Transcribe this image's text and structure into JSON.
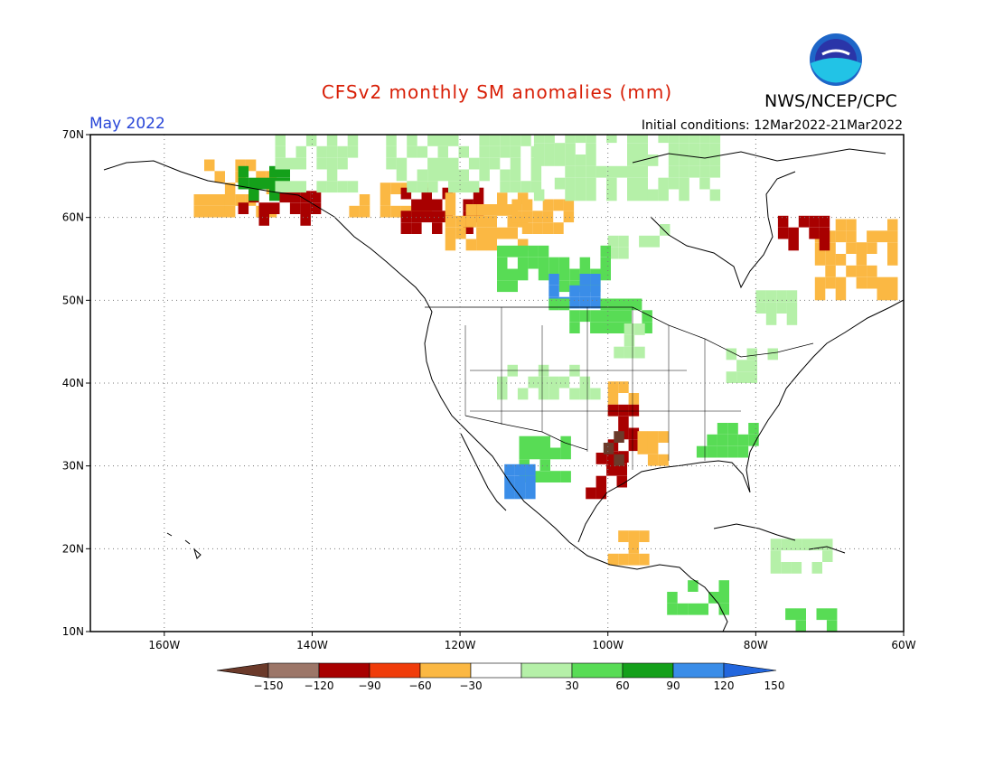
{
  "title": "CFSv2 monthly SM anomalies (mm)",
  "agency": "NWS/NCEP/CPC",
  "valid_month": "May 2022",
  "initial_conditions": "Initial conditions: 12Mar2022-21Mar2022",
  "logo_text": "NOAA",
  "colors": {
    "title": "#d81e06",
    "valid_month": "#2846d8"
  },
  "map": {
    "lon_range": [
      -170,
      -60
    ],
    "lat_range": [
      10,
      70
    ],
    "lon_ticks": [
      -160,
      -140,
      -120,
      -100,
      -80,
      -60
    ],
    "lat_ticks": [
      10,
      20,
      30,
      40,
      50,
      60,
      70
    ],
    "lon_labels": [
      "160W",
      "140W",
      "120W",
      "100W",
      "80W",
      "60W"
    ],
    "lat_labels": [
      "10N",
      "20N",
      "30N",
      "40N",
      "50N",
      "60N",
      "70N"
    ],
    "gridlines": "dotted"
  },
  "legend": {
    "labels": [
      "−150",
      "−120",
      "−90",
      "−60",
      "−30",
      "30",
      "60",
      "90",
      "120",
      "150"
    ],
    "colors": [
      "#6b3a2a",
      "#9c7668",
      "#a80000",
      "#f03c0a",
      "#fbb843",
      "#ffffff",
      "#b5f0a8",
      "#58dc55",
      "#14a01a",
      "#3a8de8",
      "#2266dd"
    ]
  },
  "anomaly_regions": [
    {
      "lon": [
        -156,
        -145
      ],
      "lat": [
        60,
        66
      ],
      "class": -60
    },
    {
      "lon": [
        -150,
        -140
      ],
      "lat": [
        59,
        63
      ],
      "class": -90
    },
    {
      "lon": [
        -150,
        -143
      ],
      "lat": [
        62,
        65
      ],
      "class": 120
    },
    {
      "lon": [
        -145,
        -135
      ],
      "lat": [
        63,
        69
      ],
      "class": 60
    },
    {
      "lon": [
        -135,
        -125
      ],
      "lat": [
        60,
        64
      ],
      "class": -60
    },
    {
      "lon": [
        -128,
        -118
      ],
      "lat": [
        58,
        63
      ],
      "class": -90
    },
    {
      "lon": [
        -122,
        -112
      ],
      "lat": [
        56,
        62
      ],
      "class": -60
    },
    {
      "lon": [
        -113,
        -105
      ],
      "lat": [
        58,
        61
      ],
      "class": -60
    },
    {
      "lon": [
        -130,
        -110
      ],
      "lat": [
        63,
        70
      ],
      "class": 60
    },
    {
      "lon": [
        -110,
        -85
      ],
      "lat": [
        62,
        70
      ],
      "class": 60
    },
    {
      "lon": [
        -100,
        -92
      ],
      "lat": [
        55,
        59
      ],
      "class": 60
    },
    {
      "lon": [
        -115,
        -100
      ],
      "lat": [
        51,
        56
      ],
      "class": 90
    },
    {
      "lon": [
        -108,
        -102
      ],
      "lat": [
        49,
        52
      ],
      "class": 150
    },
    {
      "lon": [
        -108,
        -95
      ],
      "lat": [
        46,
        49
      ],
      "class": 90
    },
    {
      "lon": [
        -102,
        -95
      ],
      "lat": [
        43,
        46
      ],
      "class": 60
    },
    {
      "lon": [
        -115,
        -102
      ],
      "lat": [
        38,
        42
      ],
      "class": 60
    },
    {
      "lon": [
        -100,
        -96
      ],
      "lat": [
        36,
        40
      ],
      "class": -60
    },
    {
      "lon": [
        -100,
        -96
      ],
      "lat": [
        29,
        36
      ],
      "class": -90
    },
    {
      "lon": [
        -103,
        -98
      ],
      "lat": [
        26,
        31
      ],
      "class": -90
    },
    {
      "lon": [
        -102,
        -99
      ],
      "lat": [
        30,
        34
      ],
      "class": -150
    },
    {
      "lon": [
        -96,
        -92
      ],
      "lat": [
        30,
        33
      ],
      "class": -60
    },
    {
      "lon": [
        -112,
        -105
      ],
      "lat": [
        28,
        33
      ],
      "class": 90
    },
    {
      "lon": [
        -114,
        -110
      ],
      "lat": [
        26,
        30
      ],
      "class": 150
    },
    {
      "lon": [
        -88,
        -80
      ],
      "lat": [
        31,
        34
      ],
      "class": 90
    },
    {
      "lon": [
        -72,
        -62
      ],
      "lat": [
        50,
        59
      ],
      "class": -60
    },
    {
      "lon": [
        -77,
        -70
      ],
      "lat": [
        56,
        60
      ],
      "class": -90
    },
    {
      "lon": [
        -80,
        -75
      ],
      "lat": [
        47,
        51
      ],
      "class": 60
    },
    {
      "lon": [
        -84,
        -78
      ],
      "lat": [
        40,
        44
      ],
      "class": 60
    },
    {
      "lon": [
        -100,
        -95
      ],
      "lat": [
        18,
        22
      ],
      "class": -60
    },
    {
      "lon": [
        -92,
        -84
      ],
      "lat": [
        12,
        16
      ],
      "class": 90
    },
    {
      "lon": [
        -78,
        -70
      ],
      "lat": [
        17,
        21
      ],
      "class": 60
    },
    {
      "lon": [
        -76,
        -70
      ],
      "lat": [
        10,
        12
      ],
      "class": 90
    }
  ]
}
